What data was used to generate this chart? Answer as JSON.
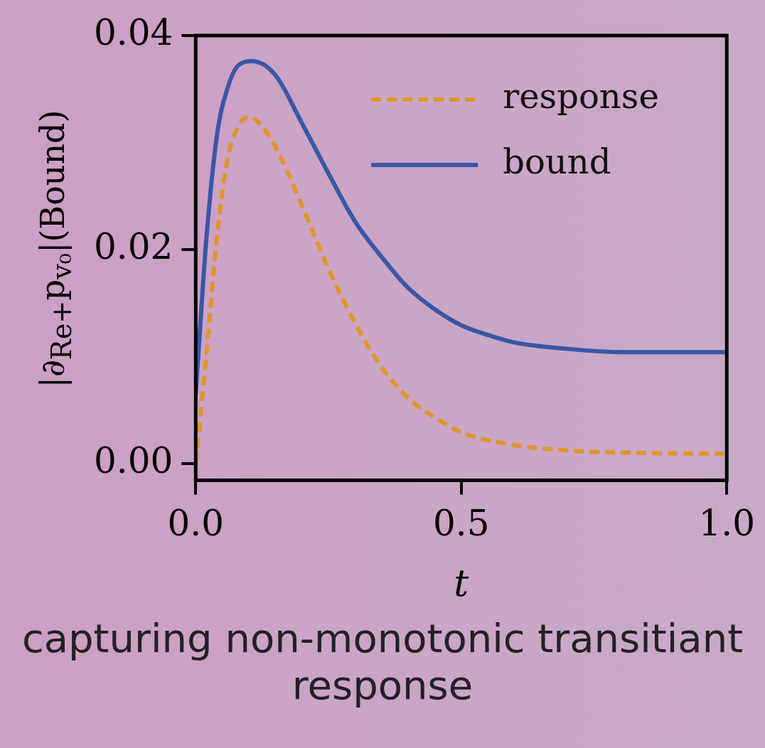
{
  "chart_data": {
    "type": "line",
    "title": "capturing non-monotonic transitiant response",
    "xlabel": "t",
    "ylabel": "|∂$_{Re+}$p$_{v₀}$|(Bound)",
    "xlim": [
      0,
      1
    ],
    "ylim": [
      -0.0016,
      0.04
    ],
    "xticks": [
      {
        "value": 0,
        "label": "0.0"
      },
      {
        "value": 0.5,
        "label": "0.5"
      },
      {
        "value": 1,
        "label": "1.0"
      }
    ],
    "yticks": [
      {
        "value": 0,
        "label": "0.00"
      },
      {
        "value": 0.02,
        "label": "0.02"
      },
      {
        "value": 0.04,
        "label": "0.04"
      }
    ],
    "grid": false,
    "legend": "top right",
    "marker": "none",
    "series": [
      {
        "name": "response",
        "color": "#e0952a",
        "line_style": "dashed",
        "x": [
          0,
          0.02,
          0.04,
          0.06,
          0.08,
          0.1,
          0.12,
          0.15,
          0.2,
          0.25,
          0.3,
          0.35,
          0.4,
          0.45,
          0.5,
          0.6,
          0.7,
          0.8,
          1.0
        ],
        "values": [
          0,
          0.0101,
          0.0212,
          0.0285,
          0.0315,
          0.0324,
          0.0318,
          0.0296,
          0.0241,
          0.0182,
          0.0131,
          0.009,
          0.0061,
          0.0043,
          0.0029,
          0.0017,
          0.0012,
          0.001,
          0.0009
        ]
      },
      {
        "name": "bound",
        "color": "#3a56a5",
        "line_style": "solid",
        "x": [
          0,
          0.02,
          0.04,
          0.06,
          0.08,
          0.106,
          0.15,
          0.2,
          0.25,
          0.3,
          0.35,
          0.4,
          0.45,
          0.5,
          0.55,
          0.6,
          0.7,
          0.8,
          1.0
        ],
        "values": [
          0.0065,
          0.021,
          0.0307,
          0.0351,
          0.0372,
          0.0376,
          0.0363,
          0.0318,
          0.0271,
          0.0226,
          0.0193,
          0.0164,
          0.0144,
          0.0129,
          0.012,
          0.0113,
          0.0107,
          0.0104,
          0.0104
        ]
      }
    ]
  }
}
